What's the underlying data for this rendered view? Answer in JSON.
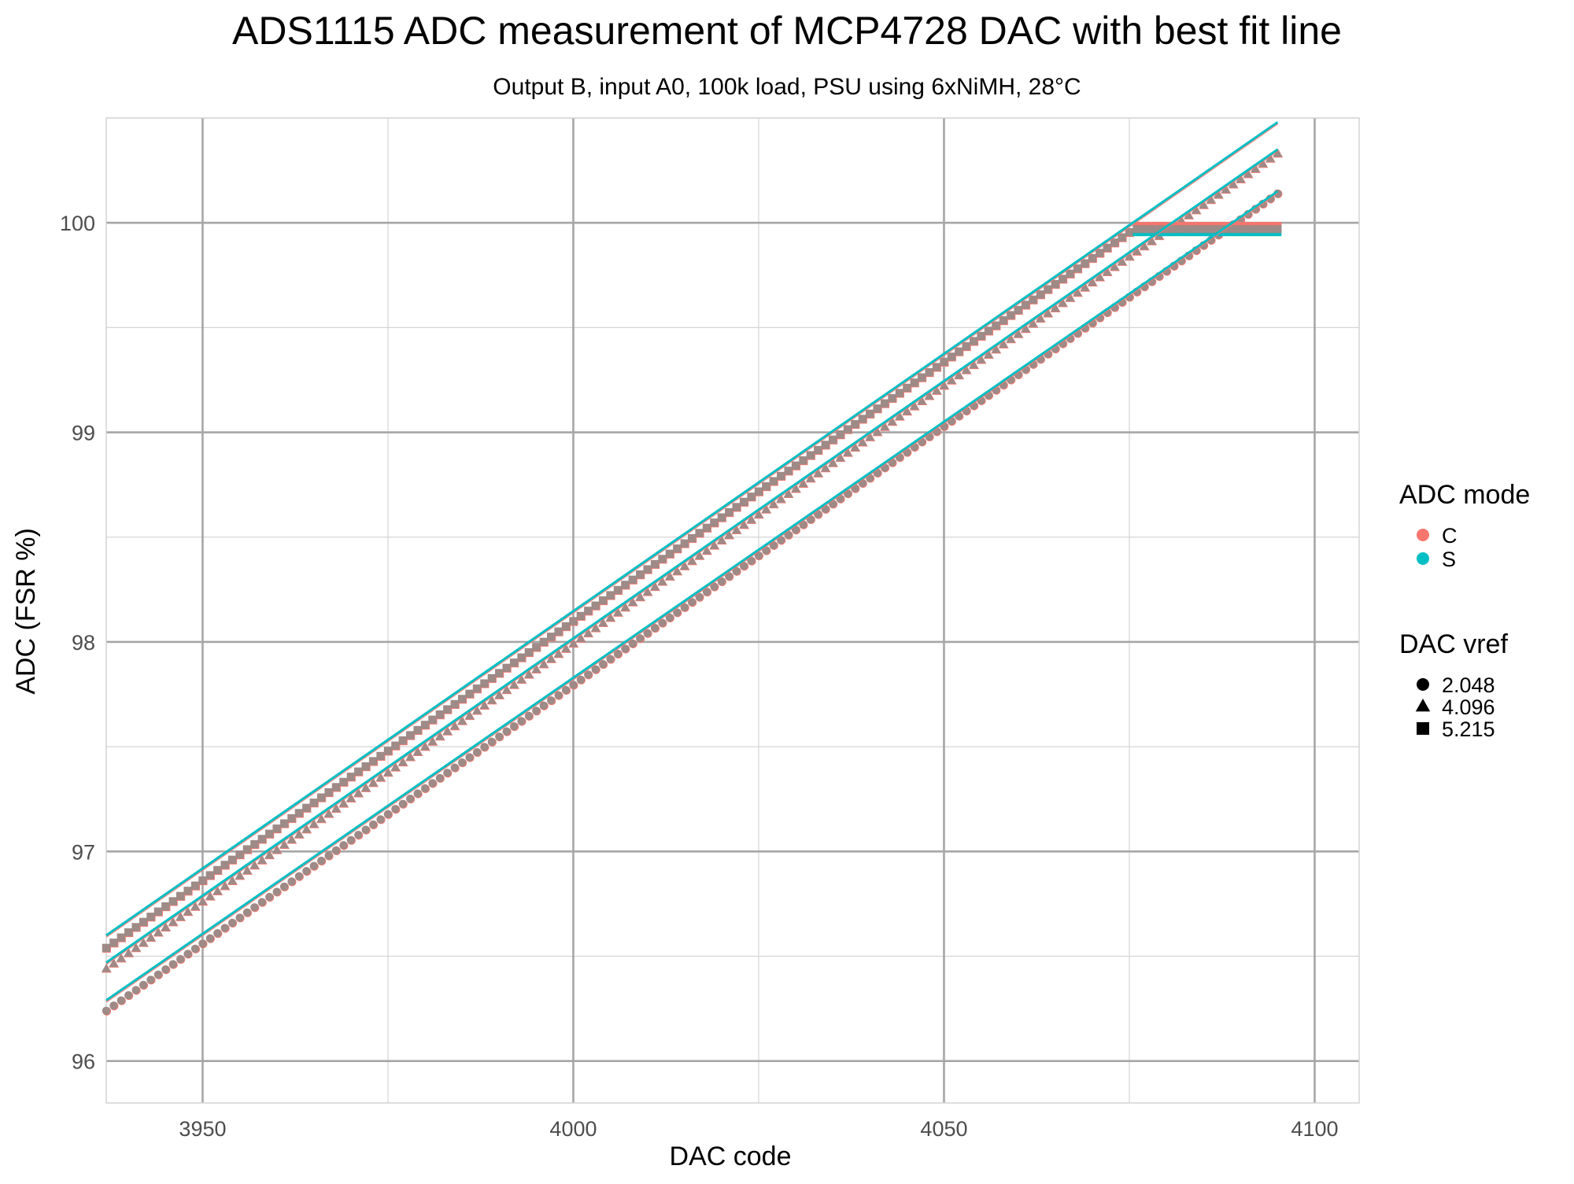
{
  "chart_data": {
    "type": "scatter",
    "title": "ADS1115 ADC measurement of MCP4728 DAC with best fit line",
    "subtitle": "Output B, input A0, 100k load, PSU using 6xNiMH, 28°C",
    "xlabel": "DAC code",
    "ylabel": "ADC (FSR %)",
    "xlim": [
      3937,
      4106
    ],
    "ylim": [
      95.8,
      100.5
    ],
    "x_ticks": [
      3950,
      4000,
      4050,
      4100
    ],
    "x_tick_labels": [
      "3950",
      "4000",
      "4050",
      "4100"
    ],
    "y_ticks": [
      96,
      97,
      98,
      99,
      100
    ],
    "y_tick_labels": [
      "96",
      "97",
      "98",
      "99",
      "100"
    ],
    "x_range_data": [
      3937,
      4095
    ],
    "grid": true,
    "legend_position": "right",
    "colors": {
      "C": "#F8766D",
      "S": "#00BFC4",
      "overlap": "#9E8A87",
      "grid_major": "#a6a6a6",
      "grid_minor": "#d4d4d4",
      "text": "#000000",
      "tick_text": "#4d4d4d"
    },
    "legend": {
      "color_title": "ADC mode",
      "color_items": [
        {
          "label": "C",
          "color": "#F8766D"
        },
        {
          "label": "S",
          "color": "#00BFC4"
        }
      ],
      "shape_title": "DAC vref",
      "shape_items": [
        {
          "label": "2.048",
          "shape": "circle"
        },
        {
          "label": "4.096",
          "shape": "triangle"
        },
        {
          "label": "5.215",
          "shape": "square"
        }
      ]
    },
    "series": [
      {
        "vref": "2.048",
        "shape": "circle",
        "x_start": 3937,
        "x_end": 4095,
        "y_start": 96.24,
        "y_end": 100.14,
        "saturate_at": null
      },
      {
        "vref": "4.096",
        "shape": "triangle",
        "x_start": 3937,
        "x_end": 4095,
        "y_start": 96.44,
        "y_end": 100.33,
        "saturate_at": null
      },
      {
        "vref": "5.215",
        "shape": "square",
        "x_start": 3937,
        "x_end": 4095,
        "y_start": 96.54,
        "y_end": 100.45,
        "saturate_at": 99.97
      }
    ],
    "fit_lines": [
      {
        "x": [
          3937,
          4095
        ],
        "y": [
          96.29,
          100.15
        ]
      },
      {
        "x": [
          3937,
          4095
        ],
        "y": [
          96.47,
          100.35
        ]
      },
      {
        "x": [
          3937,
          4095
        ],
        "y": [
          96.6,
          100.48
        ]
      }
    ]
  }
}
